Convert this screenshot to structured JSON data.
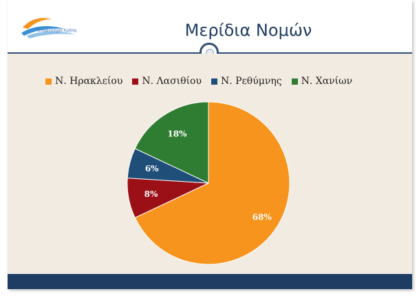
{
  "header": {
    "title": "Μερίδια Νομών",
    "logo_text": "Επιμελητήριο Κρήτης"
  },
  "colors": {
    "header_accent": "#2e4e74",
    "content_bg": "#f2ebe1",
    "footer": "#1f3d63"
  },
  "chart_data": {
    "type": "pie",
    "title": "",
    "categories": [
      "Ν. Ηρακλείου",
      "Ν. Λασιθίου",
      "Ν. Ρεθύμνης",
      "Ν. Χανίων"
    ],
    "values": [
      68,
      8,
      6,
      18
    ],
    "labels": [
      "68%",
      "8%",
      "6%",
      "18%"
    ],
    "colors": [
      "#f7941d",
      "#9b0f17",
      "#1f4e79",
      "#2f7d32"
    ],
    "legend_position": "top"
  }
}
